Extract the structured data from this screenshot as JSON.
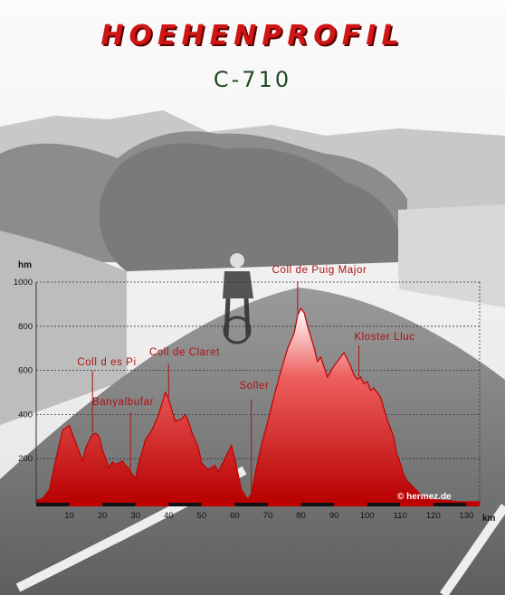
{
  "header": {
    "title": "HOEHENPROFIL",
    "subtitle": "C-710"
  },
  "colors": {
    "fill_top": "#ffffff",
    "fill_mid": "#e84848",
    "fill_bottom": "#b80000",
    "line": "#c00000",
    "label": "#b01010"
  },
  "chart_data": {
    "type": "area",
    "ylabel": "hm",
    "xlabel": "km",
    "xlim": [
      0,
      134
    ],
    "ylim": [
      0,
      1000
    ],
    "grid": true,
    "x_ticks": [
      10,
      20,
      30,
      40,
      50,
      60,
      70,
      80,
      90,
      100,
      110,
      120,
      130
    ],
    "y_ticks": [
      200,
      400,
      600,
      800,
      1000
    ],
    "credit": "© hermez.de",
    "series": [
      {
        "x": [
          0,
          2,
          4,
          6,
          8,
          10,
          12,
          14,
          15,
          17,
          18,
          19,
          20,
          22,
          23,
          24,
          25,
          26,
          27,
          28,
          29,
          30,
          31,
          32,
          33,
          35,
          37,
          38,
          39,
          40,
          41,
          42,
          44,
          45,
          46,
          47,
          49,
          50,
          52,
          54,
          55,
          57,
          58,
          59,
          60,
          61,
          62,
          64,
          65,
          66,
          68,
          70,
          72,
          74,
          76,
          78,
          79,
          80,
          81,
          82,
          84,
          85,
          86,
          88,
          90,
          91,
          92,
          93,
          94,
          95,
          96,
          97,
          98,
          99,
          100,
          101,
          102,
          103,
          104,
          105,
          106,
          108,
          109,
          110,
          111,
          112,
          114,
          116,
          118,
          120,
          124,
          128,
          132,
          134
        ],
        "y": [
          10,
          20,
          60,
          200,
          330,
          350,
          270,
          190,
          250,
          310,
          315,
          300,
          240,
          160,
          185,
          175,
          180,
          190,
          170,
          155,
          130,
          110,
          180,
          230,
          285,
          330,
          400,
          450,
          500,
          470,
          420,
          370,
          380,
          400,
          370,
          320,
          250,
          180,
          150,
          170,
          140,
          200,
          230,
          260,
          200,
          130,
          60,
          15,
          40,
          120,
          260,
          370,
          490,
          600,
          700,
          770,
          850,
          880,
          860,
          800,
          700,
          640,
          660,
          570,
          620,
          640,
          660,
          680,
          650,
          620,
          580,
          560,
          570,
          540,
          550,
          510,
          520,
          500,
          480,
          430,
          380,
          300,
          220,
          180,
          130,
          100,
          70,
          40,
          25,
          15,
          10,
          5,
          5,
          5
        ]
      }
    ],
    "annotations": [
      {
        "text": "Coll d es Pi",
        "x": 17
      },
      {
        "text": "Banyalbufar",
        "x": 28.5
      },
      {
        "text": "Coll de Claret",
        "x": 40
      },
      {
        "text": "Soller",
        "x": 65
      },
      {
        "text": "Coll de Puig Major",
        "x": 79
      },
      {
        "text": "Kloster Lluc",
        "x": 97.5
      }
    ]
  }
}
